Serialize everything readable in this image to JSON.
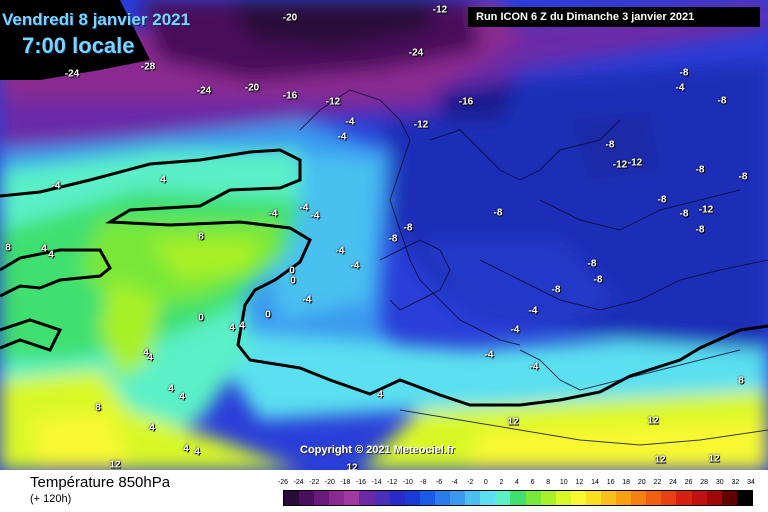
{
  "header": {
    "date": "Vendredi 8 janvier 2021",
    "time": "7:00 locale",
    "run": "Run ICON 6 Z du Dimanche 3 janvier 2021"
  },
  "copyright": "Copyright © 2021 Meteociel.fr",
  "footer": {
    "title": "Température 850hPa",
    "subtitle": "(+ 120h)"
  },
  "scale": {
    "labels": [
      "-26",
      "-24",
      "-22",
      "-20",
      "-18",
      "-16",
      "-14",
      "-12",
      "-10",
      "-8",
      "-6",
      "-4",
      "-2",
      "0",
      "2",
      "4",
      "6",
      "8",
      "10",
      "12",
      "14",
      "16",
      "18",
      "20",
      "22",
      "24",
      "26",
      "28",
      "30",
      "32",
      "34"
    ],
    "colors": [
      "#2a0a3a",
      "#4a0f5c",
      "#6a1a7a",
      "#8a2a90",
      "#a03aa0",
      "#6a2aa8",
      "#4a30b8",
      "#2a2ac8",
      "#1a3ad8",
      "#1a5ae8",
      "#2a7af0",
      "#3a9af0",
      "#4ac0f0",
      "#5ae0f0",
      "#5af0c8",
      "#40e070",
      "#78e838",
      "#a8f028",
      "#d8f828",
      "#f8f830",
      "#f8e020",
      "#f8c018",
      "#f8a010",
      "#f88010",
      "#f06010",
      "#e84010",
      "#d82010",
      "#c01010",
      "#a00808",
      "#600000",
      "#000000"
    ]
  },
  "map_labels": [
    {
      "t": "-20"
    },
    {
      "t": "-12"
    },
    {
      "t": "-24"
    },
    {
      "t": "-28"
    },
    {
      "t": "-24"
    },
    {
      "t": "-24"
    },
    {
      "t": "-20"
    },
    {
      "t": "-16"
    },
    {
      "t": "-12"
    },
    {
      "t": "-16"
    },
    {
      "t": "-12"
    },
    {
      "t": "-8"
    },
    {
      "t": "-4"
    },
    {
      "t": "-8"
    },
    {
      "t": "-8"
    },
    {
      "t": "-12"
    },
    {
      "t": "-12"
    },
    {
      "t": "-8"
    },
    {
      "t": "-8"
    },
    {
      "t": "-8"
    },
    {
      "t": "-8"
    },
    {
      "t": "-8"
    },
    {
      "t": "-12"
    },
    {
      "t": "-8"
    },
    {
      "t": "-4"
    },
    {
      "t": "-4"
    },
    {
      "t": "-4"
    },
    {
      "t": "-4"
    },
    {
      "t": "-4"
    },
    {
      "t": "-4"
    },
    {
      "t": "-4"
    },
    {
      "t": "-4"
    },
    {
      "t": "-4"
    },
    {
      "t": "4"
    },
    {
      "t": "8"
    },
    {
      "t": "8"
    },
    {
      "t": "4"
    },
    {
      "t": "4"
    },
    {
      "t": "0"
    },
    {
      "t": "0"
    },
    {
      "t": "0"
    },
    {
      "t": "0"
    },
    {
      "t": "4"
    },
    {
      "t": "4"
    },
    {
      "t": "4"
    },
    {
      "t": "4"
    },
    {
      "t": "8"
    },
    {
      "t": "4"
    },
    {
      "t": "4"
    },
    {
      "t": "-8"
    },
    {
      "t": "-8"
    },
    {
      "t": "-8"
    },
    {
      "t": "-8"
    },
    {
      "t": "-8"
    },
    {
      "t": "-4"
    },
    {
      "t": "-4"
    },
    {
      "t": "-4"
    },
    {
      "t": "-4"
    },
    {
      "t": "4"
    },
    {
      "t": "8"
    },
    {
      "t": "12"
    },
    {
      "t": "12"
    },
    {
      "t": "12"
    },
    {
      "t": "12"
    },
    {
      "t": "12"
    },
    {
      "t": "4"
    },
    {
      "t": "4"
    },
    {
      "t": "12"
    },
    {
      "t": "4"
    }
  ]
}
